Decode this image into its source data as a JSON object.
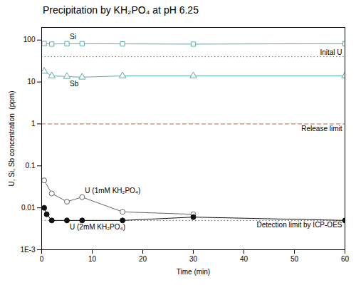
{
  "chart_data": {
    "type": "line",
    "title": "Precipitation by KH₂PO₄ at pH 6.25",
    "x_label": "Time (min)",
    "y_label": "U, Si, Sb concentration  (ppm)",
    "log": "y",
    "xlim": [
      0,
      60
    ],
    "ylim": [
      0.001,
      200
    ],
    "xticks": [
      0,
      10,
      20,
      30,
      40,
      50,
      60
    ],
    "yticks": [
      {
        "value": 0.001,
        "label": "1E-3"
      },
      0.01,
      0.1,
      1,
      10,
      100
    ],
    "grid": false,
    "series": [
      {
        "name": "Si",
        "color": "#5aacac",
        "marker": "square-open",
        "line_style": "solid",
        "x": [
          0.5,
          2,
          5,
          8,
          16,
          30,
          60
        ],
        "values": [
          83,
          80,
          82,
          82,
          81,
          80,
          82
        ]
      },
      {
        "name": "Sb",
        "color": "#5aacac",
        "marker": "triangle-open",
        "line_style": "solid",
        "x": [
          0.5,
          2,
          5,
          8,
          16,
          30,
          60
        ],
        "values": [
          18,
          14,
          13.5,
          13,
          14,
          14,
          14
        ]
      },
      {
        "name": "U (1mM KH₂PO₄)",
        "color": "#666666",
        "marker": "circle-open",
        "line_style": "solid",
        "x": [
          0.5,
          2,
          5,
          8,
          16,
          30
        ],
        "values": [
          0.045,
          0.022,
          0.014,
          0.018,
          0.008,
          0.007
        ]
      },
      {
        "name": "U (2mM KH₂PO₄)",
        "color": "#111111",
        "marker": "circle-filled",
        "line_style": "solid",
        "x": [
          0.5,
          1,
          2,
          5,
          8,
          16,
          30,
          60
        ],
        "values": [
          0.01,
          0.007,
          0.005,
          0.005,
          0.005,
          0.005,
          0.006,
          0.005
        ]
      }
    ],
    "reference_lines": [
      {
        "name": "Inital U",
        "value": 40,
        "color": "#666666",
        "line_style": "dotted"
      },
      {
        "name": "Release limit",
        "value": 1.0,
        "color": "#cc6633",
        "line_style": "dashed"
      },
      {
        "name": "Detection limit by ICP-OES",
        "value": 0.005,
        "color": "#666666",
        "line_style": "dotted"
      }
    ]
  }
}
